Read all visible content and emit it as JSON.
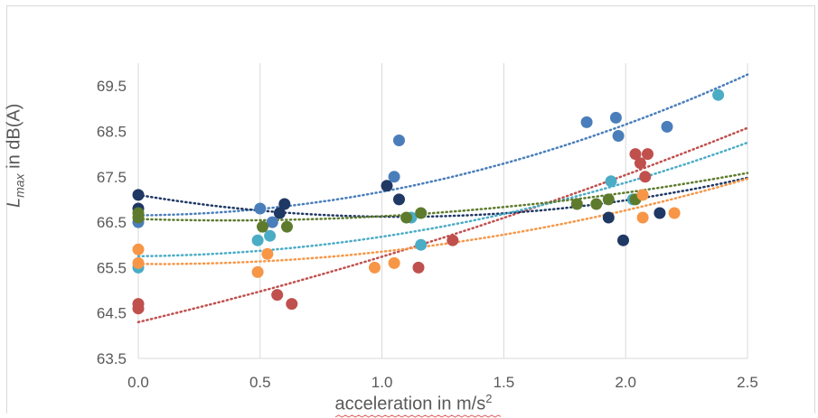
{
  "chart_data": {
    "type": "scatter",
    "title": "",
    "xlabel_main": "acceleration in m/s",
    "xlabel_sup": "2",
    "ylabel_main": "L",
    "ylabel_sub": "max",
    "ylabel_rest": " in dB(A)",
    "xlim": [
      0.0,
      2.5
    ],
    "ylim": [
      63.5,
      70.0
    ],
    "x_ticks": [
      "0.0",
      "0.5",
      "1.0",
      "1.5",
      "2.0",
      "2.5"
    ],
    "y_ticks": [
      "63.5",
      "64.5",
      "65.5",
      "66.5",
      "67.5",
      "68.5",
      "69.5"
    ],
    "grid": "vertical",
    "trendline": "polynomial (dotted)",
    "series": [
      {
        "color": "#4a7ebb",
        "points": [
          [
            0.0,
            66.5
          ],
          [
            0.5,
            66.8
          ],
          [
            0.55,
            66.5
          ],
          [
            1.05,
            67.5
          ],
          [
            1.07,
            68.3
          ],
          [
            1.84,
            68.7
          ],
          [
            1.96,
            68.8
          ],
          [
            1.97,
            68.4
          ],
          [
            2.17,
            68.6
          ]
        ],
        "trend": [
          6e-05,
          0.05,
          1.2
        ]
      },
      {
        "color": "#c0504d",
        "points": [
          [
            0.0,
            64.7
          ],
          [
            0.0,
            64.6
          ],
          [
            0.57,
            64.9
          ],
          [
            0.63,
            64.7
          ],
          [
            1.15,
            65.5
          ],
          [
            1.29,
            66.1
          ],
          [
            2.04,
            68.0
          ],
          [
            2.06,
            67.8
          ],
          [
            2.08,
            67.5
          ],
          [
            2.09,
            68.0
          ]
        ],
        "trend": [
          64.3,
          1.26,
          0.18
        ]
      },
      {
        "color": "#1f3864",
        "points": [
          [
            0.0,
            67.1
          ],
          [
            0.0,
            66.8
          ],
          [
            0.58,
            66.7
          ],
          [
            0.6,
            66.9
          ],
          [
            1.02,
            67.3
          ],
          [
            1.07,
            67.0
          ],
          [
            1.93,
            66.6
          ],
          [
            1.99,
            66.1
          ],
          [
            2.14,
            66.7
          ]
        ],
        "trend": [
          67.1,
          -0.9,
          0.42
        ]
      },
      {
        "color": "#4bacc6",
        "points": [
          [
            0.0,
            65.5
          ],
          [
            0.49,
            66.1
          ],
          [
            0.54,
            66.2
          ],
          [
            1.12,
            66.6
          ],
          [
            1.16,
            66.0
          ],
          [
            1.94,
            67.4
          ],
          [
            2.03,
            67.0
          ],
          [
            2.38,
            69.3
          ]
        ],
        "trend": [
          65.75,
          0.05,
          0.38
        ]
      },
      {
        "color": "#5e7b2d",
        "points": [
          [
            0.0,
            66.6
          ],
          [
            0.0,
            66.7
          ],
          [
            0.51,
            66.4
          ],
          [
            0.61,
            66.4
          ],
          [
            1.1,
            66.6
          ],
          [
            1.16,
            66.7
          ],
          [
            1.8,
            66.9
          ],
          [
            1.88,
            66.9
          ],
          [
            1.93,
            67.0
          ],
          [
            2.04,
            67.0
          ]
        ],
        "trend": [
          66.57,
          -0.17,
          0.23
        ]
      },
      {
        "color": "#f79646",
        "points": [
          [
            0.0,
            65.9
          ],
          [
            0.0,
            65.6
          ],
          [
            0.49,
            65.4
          ],
          [
            0.53,
            65.8
          ],
          [
            0.97,
            65.5
          ],
          [
            1.05,
            65.6
          ],
          [
            2.07,
            66.6
          ],
          [
            2.07,
            67.1
          ],
          [
            2.2,
            66.7
          ]
        ],
        "trend": [
          65.58,
          -0.05,
          0.32
        ]
      }
    ]
  }
}
